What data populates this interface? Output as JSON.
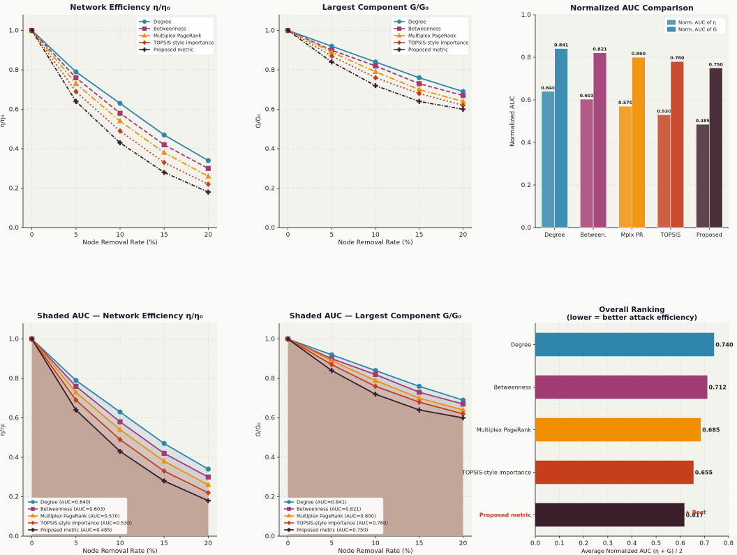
{
  "colors": {
    "degree": "#2e86ab",
    "betweenness": "#a23b72",
    "pagerank": "#f18f01",
    "topsis": "#c73e1d",
    "proposed": "#3b1f2b",
    "axes_bg": "#f3f3ee",
    "fill_area": "#c2a69a",
    "best": "#c73e1d"
  },
  "chart_data": [
    {
      "id": "p1",
      "type": "line",
      "title": "Network Efficiency  η/η₀",
      "xlabel": "Node Removal Rate (%)",
      "ylabel": "η/η₀",
      "x": [
        0,
        5,
        10,
        15,
        20
      ],
      "xlim": [
        -1,
        21
      ],
      "ylim": [
        0,
        1.08
      ],
      "xticks": [
        "0",
        "5",
        "10",
        "15",
        "20"
      ],
      "yticks": [
        "0.0",
        "0.2",
        "0.4",
        "0.6",
        "0.8",
        "1.0"
      ],
      "legend_position": "top-right",
      "grid": true,
      "series": [
        {
          "name": "Degree",
          "values": [
            1.0,
            0.79,
            0.63,
            0.47,
            0.34
          ],
          "marker": "circle",
          "dash": "solid"
        },
        {
          "name": "Betweenness",
          "values": [
            1.0,
            0.76,
            0.58,
            0.42,
            0.3
          ],
          "marker": "square",
          "dash": "dashed"
        },
        {
          "name": "Multiplex PageRank",
          "values": [
            1.0,
            0.73,
            0.54,
            0.38,
            0.26
          ],
          "marker": "triangle",
          "dash": "dashdot"
        },
        {
          "name": "TOPSIS-style importance",
          "values": [
            1.0,
            0.69,
            0.49,
            0.33,
            0.22
          ],
          "marker": "diamond",
          "dash": "dotted"
        },
        {
          "name": "Proposed metric",
          "values": [
            1.0,
            0.64,
            0.43,
            0.28,
            0.18
          ],
          "marker": "plus",
          "dash": "dashdot2"
        }
      ]
    },
    {
      "id": "p2",
      "type": "line",
      "title": "Largest Component  G/G₀",
      "xlabel": "Node Removal Rate (%)",
      "ylabel": "G/G₀",
      "x": [
        0,
        5,
        10,
        15,
        20
      ],
      "xlim": [
        -1,
        21
      ],
      "ylim": [
        0,
        1.08
      ],
      "xticks": [
        "0",
        "5",
        "10",
        "15",
        "20"
      ],
      "yticks": [
        "0.0",
        "0.2",
        "0.4",
        "0.6",
        "0.8",
        "1.0"
      ],
      "legend_position": "top-right",
      "grid": true,
      "series": [
        {
          "name": "Degree",
          "values": [
            1.0,
            0.92,
            0.84,
            0.76,
            0.69
          ],
          "marker": "circle",
          "dash": "solid"
        },
        {
          "name": "Betweenness",
          "values": [
            1.0,
            0.9,
            0.82,
            0.73,
            0.67
          ],
          "marker": "square",
          "dash": "dashed"
        },
        {
          "name": "Multiplex PageRank",
          "values": [
            1.0,
            0.89,
            0.79,
            0.7,
            0.64
          ],
          "marker": "triangle",
          "dash": "dashdot"
        },
        {
          "name": "TOPSIS-style importance",
          "values": [
            1.0,
            0.87,
            0.76,
            0.68,
            0.62
          ],
          "marker": "diamond",
          "dash": "dotted"
        },
        {
          "name": "Proposed metric",
          "values": [
            1.0,
            0.84,
            0.72,
            0.64,
            0.6
          ],
          "marker": "plus",
          "dash": "dashdot2"
        }
      ]
    },
    {
      "id": "p3",
      "type": "bar",
      "title": "Normalized AUC Comparison",
      "ylabel": "Normalized AUC",
      "categories": [
        "Degree",
        "Between.",
        "Mplx PR",
        "TOPSIS",
        "Proposed"
      ],
      "ylim": [
        0,
        1.0
      ],
      "yticks": [
        "0.0",
        "0.2",
        "0.4",
        "0.6",
        "0.8",
        "1.0"
      ],
      "legend_position": "top-right",
      "series": [
        {
          "name": "Norm. AUC of η",
          "values": [
            0.64,
            0.603,
            0.57,
            0.53,
            0.485
          ],
          "labels": [
            "0.640",
            "0.603",
            "0.570",
            "0.530",
            "0.485"
          ]
        },
        {
          "name": "Norm. AUC of G",
          "values": [
            0.841,
            0.821,
            0.8,
            0.78,
            0.75
          ],
          "labels": [
            "0.841",
            "0.821",
            "0.800",
            "0.780",
            "0.750"
          ]
        }
      ]
    },
    {
      "id": "p4",
      "type": "area",
      "title": "Shaded AUC — Network Efficiency η/η₀",
      "xlabel": "Node Removal Rate (%)",
      "ylabel": "η/η₀",
      "x": [
        0,
        5,
        10,
        15,
        20
      ],
      "xlim": [
        -1,
        21
      ],
      "ylim": [
        0,
        1.08
      ],
      "xticks": [
        "0",
        "5",
        "10",
        "15",
        "20"
      ],
      "yticks": [
        "0.0",
        "0.2",
        "0.4",
        "0.6",
        "0.8",
        "1.0"
      ],
      "legend_position": "bottom-left",
      "grid": true,
      "series": [
        {
          "name": "Degree (AUC=0.640)",
          "values": [
            1.0,
            0.79,
            0.63,
            0.47,
            0.34
          ],
          "marker": "circle"
        },
        {
          "name": "Betweenness (AUC=0.603)",
          "values": [
            1.0,
            0.76,
            0.58,
            0.42,
            0.3
          ],
          "marker": "square"
        },
        {
          "name": "Multiplex PageRank (AUC=0.570)",
          "values": [
            1.0,
            0.73,
            0.54,
            0.38,
            0.26
          ],
          "marker": "triangle"
        },
        {
          "name": "TOPSIS-style importance (AUC=0.530)",
          "values": [
            1.0,
            0.69,
            0.49,
            0.33,
            0.22
          ],
          "marker": "diamond"
        },
        {
          "name": "Proposed metric (AUC=0.485)",
          "values": [
            1.0,
            0.64,
            0.43,
            0.28,
            0.18
          ],
          "marker": "plus"
        }
      ]
    },
    {
      "id": "p5",
      "type": "area",
      "title": "Shaded AUC — Largest Component G/G₀",
      "xlabel": "Node Removal Rate (%)",
      "ylabel": "G/G₀",
      "x": [
        0,
        5,
        10,
        15,
        20
      ],
      "xlim": [
        -1,
        21
      ],
      "ylim": [
        0,
        1.08
      ],
      "xticks": [
        "0",
        "5",
        "10",
        "15",
        "20"
      ],
      "yticks": [
        "0.0",
        "0.2",
        "0.4",
        "0.6",
        "0.8",
        "1.0"
      ],
      "legend_position": "bottom-left",
      "grid": true,
      "series": [
        {
          "name": "Degree (AUC=0.841)",
          "values": [
            1.0,
            0.92,
            0.84,
            0.76,
            0.69
          ],
          "marker": "circle"
        },
        {
          "name": "Betweenness (AUC=0.821)",
          "values": [
            1.0,
            0.9,
            0.82,
            0.73,
            0.67
          ],
          "marker": "square"
        },
        {
          "name": "Multiplex PageRank (AUC=0.800)",
          "values": [
            1.0,
            0.89,
            0.79,
            0.7,
            0.64
          ],
          "marker": "triangle"
        },
        {
          "name": "TOPSIS-style importance (AUC=0.780)",
          "values": [
            1.0,
            0.87,
            0.76,
            0.68,
            0.62
          ],
          "marker": "diamond"
        },
        {
          "name": "Proposed metric (AUC=0.750)",
          "values": [
            1.0,
            0.84,
            0.72,
            0.64,
            0.6
          ],
          "marker": "plus"
        }
      ]
    },
    {
      "id": "p6",
      "type": "bar",
      "orientation": "horizontal",
      "title": "Overall Ranking",
      "subtitle": "(lower = better attack efficiency)",
      "xlabel": "Average Normalized AUC  (η + G) / 2",
      "categories": [
        "Degree",
        "Betweenness",
        "Multiplex PageRank",
        "TOPSIS-style importance",
        "Proposed metric"
      ],
      "values": [
        0.74,
        0.712,
        0.685,
        0.655,
        0.617
      ],
      "labels": [
        "0.740",
        "0.712",
        "0.685",
        "0.655",
        "0.617"
      ],
      "xlim": [
        0,
        0.8
      ],
      "xticks": [
        "0.0",
        "0.1",
        "0.2",
        "0.3",
        "0.4",
        "0.5",
        "0.6",
        "0.7",
        "0.8"
      ],
      "highlight": "Proposed metric",
      "annotation": "★ Best"
    }
  ]
}
